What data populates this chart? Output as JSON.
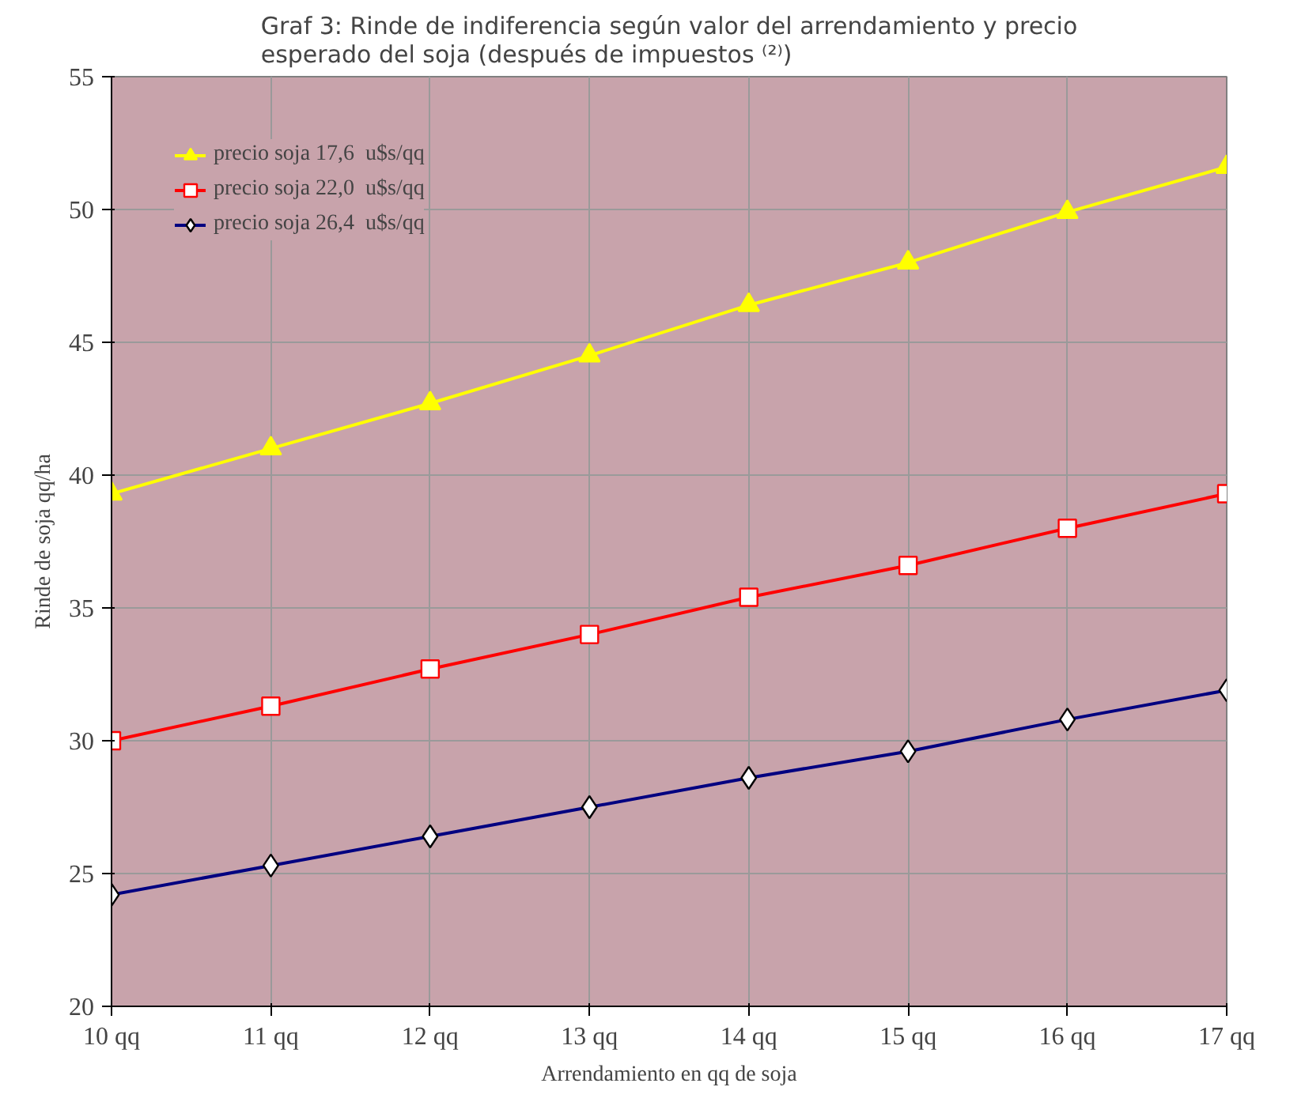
{
  "chart_data": {
    "type": "line",
    "title": "Graf 3: Rinde de indiferencia según valor del arrendamiento y precio\nesperado del soja (después de impuestos ⁽²⁾)",
    "xlabel": "Arrendamiento en qq de soja",
    "ylabel": "Rinde de soja qq/ha",
    "categories": [
      "10 qq",
      "11 qq",
      "12 qq",
      "13 qq",
      "14 qq",
      "15 qq",
      "16 qq",
      "17 qq"
    ],
    "series": [
      {
        "name": "precio soja 17,6  u$s/qq",
        "color": "#ffff00",
        "marker": "triangle",
        "values": [
          39.3,
          41.0,
          42.7,
          44.5,
          46.4,
          48.0,
          49.9,
          51.6
        ]
      },
      {
        "name": "precio soja 22,0  u$s/qq",
        "color": "#ff0000",
        "marker": "square",
        "values": [
          30.0,
          31.3,
          32.7,
          34.0,
          35.4,
          36.6,
          38.0,
          39.3
        ]
      },
      {
        "name": "precio soja 26,4  u$s/qq",
        "color": "#000080",
        "marker": "diamond",
        "values": [
          24.2,
          25.3,
          26.4,
          27.5,
          28.6,
          29.6,
          30.8,
          31.9
        ]
      }
    ],
    "ylim": [
      20,
      55
    ],
    "yticks": [
      20,
      25,
      30,
      35,
      40,
      45,
      50,
      55
    ],
    "grid": true,
    "legend": "top left"
  }
}
